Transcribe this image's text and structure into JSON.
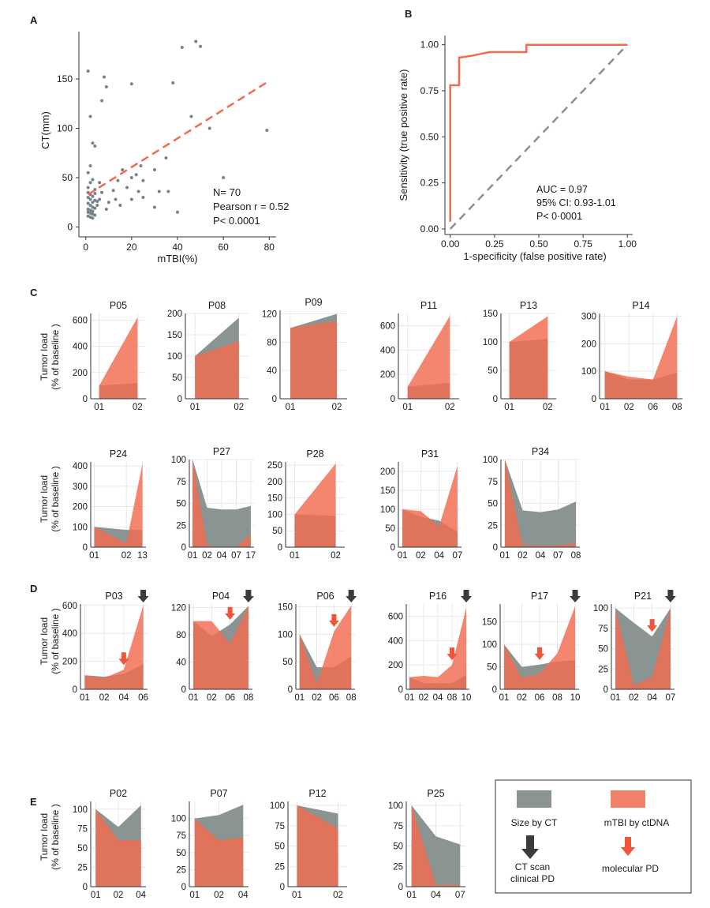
{
  "colors": {
    "ct": "#8a9593",
    "mtbi": "#f26b50",
    "overlap": "#a48c84",
    "grid": "#e3e3e3",
    "axis": "#333333",
    "scatter_point": "#75838a",
    "diagonal": "#8f8f8f",
    "ct_arrow": "#3b3b3b",
    "mol_arrow": "#f0553b"
  },
  "chart_data": [
    {
      "id": "A",
      "panel_letter": "A",
      "type": "scatter",
      "xlabel": "mTBI(%)",
      "ylabel": "CT(mm)",
      "xlim": [
        -3,
        83
      ],
      "ylim": [
        -10,
        198
      ],
      "xticks": [
        "0",
        "20",
        "40",
        "60",
        "80"
      ],
      "xtick_values": [
        0,
        20,
        40,
        60,
        80
      ],
      "yticks": [
        "0",
        "50",
        "100",
        "150"
      ],
      "ytick_values": [
        0,
        50,
        100,
        150
      ],
      "points": [
        [
          1,
          158
        ],
        [
          2,
          112
        ],
        [
          3,
          85
        ],
        [
          4,
          82
        ],
        [
          2,
          62
        ],
        [
          1,
          55
        ],
        [
          3,
          48
        ],
        [
          2,
          45
        ],
        [
          1,
          40
        ],
        [
          4,
          38
        ],
        [
          1,
          35
        ],
        [
          2,
          33
        ],
        [
          3,
          31
        ],
        [
          1,
          30
        ],
        [
          2,
          28
        ],
        [
          4,
          27
        ],
        [
          5,
          26
        ],
        [
          3,
          25
        ],
        [
          1,
          24
        ],
        [
          2,
          22
        ],
        [
          3,
          20
        ],
        [
          4,
          19
        ],
        [
          1,
          18
        ],
        [
          2,
          17
        ],
        [
          3,
          16
        ],
        [
          1,
          15
        ],
        [
          2,
          14
        ],
        [
          3,
          13
        ],
        [
          4,
          12
        ],
        [
          1,
          11
        ],
        [
          2,
          10
        ],
        [
          3,
          9
        ],
        [
          5,
          22
        ],
        [
          6,
          28
        ],
        [
          4,
          34
        ],
        [
          8,
          152
        ],
        [
          9,
          142
        ],
        [
          7,
          128
        ],
        [
          6,
          45
        ],
        [
          7,
          35
        ],
        [
          9,
          18
        ],
        [
          10,
          25
        ],
        [
          12,
          37
        ],
        [
          13,
          28
        ],
        [
          14,
          47
        ],
        [
          16,
          58
        ],
        [
          15,
          22
        ],
        [
          18,
          40
        ],
        [
          20,
          50
        ],
        [
          22,
          53
        ],
        [
          23,
          36
        ],
        [
          20,
          145
        ],
        [
          24,
          62
        ],
        [
          25,
          47
        ],
        [
          30,
          58
        ],
        [
          32,
          36
        ],
        [
          35,
          70
        ],
        [
          36,
          36
        ],
        [
          38,
          146
        ],
        [
          42,
          182
        ],
        [
          46,
          112
        ],
        [
          48,
          188
        ],
        [
          50,
          183
        ],
        [
          54,
          100
        ],
        [
          60,
          50
        ],
        [
          20,
          28
        ],
        [
          25,
          30
        ],
        [
          30,
          20
        ],
        [
          40,
          15
        ],
        [
          79,
          98
        ]
      ],
      "trend": {
        "x": [
          1,
          80
        ],
        "y": [
          33,
          148
        ]
      },
      "annotations": [
        "N= 70",
        "Pearson r = 0.52",
        "P< 0.0001"
      ]
    },
    {
      "id": "B",
      "panel_letter": "B",
      "type": "line",
      "xlabel": "1-specificity (false positive rate)",
      "ylabel": "Sensitivity (true positive rate)",
      "xlim": [
        -0.03,
        1.03
      ],
      "ylim": [
        -0.03,
        1.05
      ],
      "xticks": [
        "0.00",
        "0.25",
        "0.50",
        "0.75",
        "1.00"
      ],
      "xtick_values": [
        0,
        0.25,
        0.5,
        0.75,
        1
      ],
      "yticks": [
        "0.00",
        "0.25",
        "0.50",
        "0.75",
        "1.00"
      ],
      "ytick_values": [
        0,
        0.25,
        0.5,
        0.75,
        1
      ],
      "roc": [
        [
          0,
          0.04
        ],
        [
          0,
          0.78
        ],
        [
          0.05,
          0.78
        ],
        [
          0.05,
          0.91
        ],
        [
          0.05,
          0.93
        ],
        [
          0.12,
          0.94
        ],
        [
          0.17,
          0.95
        ],
        [
          0.22,
          0.96
        ],
        [
          0.43,
          0.96
        ],
        [
          0.43,
          1.0
        ],
        [
          1.0,
          1.0
        ]
      ],
      "diagonal": [
        [
          0,
          0
        ],
        [
          1,
          1
        ]
      ],
      "annotations": [
        "AUC = 0.97",
        "95% CI: 0.93-1.01",
        "P< 0·0001"
      ]
    }
  ],
  "area_panels": [
    {
      "id": "P05",
      "section": "C",
      "ylim": [
        0,
        650
      ],
      "yticks": [
        0,
        200,
        400,
        600
      ],
      "xticks": [
        "01",
        "02"
      ],
      "x": [
        0,
        1
      ],
      "ct": [
        100,
        120
      ],
      "mtbi": [
        100,
        620
      ]
    },
    {
      "id": "P08",
      "section": "C",
      "ylim": [
        0,
        200
      ],
      "yticks": [
        0,
        50,
        100,
        150,
        200
      ],
      "xticks": [
        "01",
        "02"
      ],
      "x": [
        0,
        1
      ],
      "ct": [
        100,
        190
      ],
      "mtbi": [
        100,
        135
      ]
    },
    {
      "id": "P09",
      "section": "C",
      "ylim": [
        0,
        125
      ],
      "yticks": [
        0,
        40,
        80,
        120
      ],
      "xticks": [
        "01",
        "02"
      ],
      "x": [
        0,
        1
      ],
      "ct": [
        100,
        120
      ],
      "mtbi": [
        100,
        110
      ]
    },
    {
      "id": "P11",
      "section": "C",
      "ylim": [
        0,
        700
      ],
      "yticks": [
        0,
        200,
        400,
        600
      ],
      "xticks": [
        "01",
        "02"
      ],
      "x": [
        0,
        1
      ],
      "ct": [
        100,
        130
      ],
      "mtbi": [
        100,
        680
      ]
    },
    {
      "id": "P13",
      "section": "C",
      "ylim": [
        0,
        150
      ],
      "yticks": [
        0,
        50,
        100,
        150
      ],
      "xticks": [
        "01",
        "02"
      ],
      "x": [
        0,
        1
      ],
      "ct": [
        100,
        105
      ],
      "mtbi": [
        100,
        145
      ]
    },
    {
      "id": "P14",
      "section": "C",
      "ylim": [
        0,
        310
      ],
      "yticks": [
        0,
        100,
        200,
        300
      ],
      "xticks": [
        "01",
        "02",
        "06",
        "08"
      ],
      "x": [
        0,
        1,
        2,
        3
      ],
      "ct": [
        100,
        70,
        70,
        95
      ],
      "mtbi": [
        100,
        80,
        70,
        300
      ]
    },
    {
      "id": "P24",
      "section": "C",
      "ylim": [
        0,
        420
      ],
      "yticks": [
        0,
        100,
        200,
        300,
        400
      ],
      "xticks": [
        "01",
        "02",
        "13"
      ],
      "x": [
        0,
        2,
        3
      ],
      "ct": [
        100,
        85,
        85
      ],
      "mtbi": [
        100,
        20,
        410
      ]
    },
    {
      "id": "P27",
      "section": "C",
      "ylim": [
        0,
        100
      ],
      "yticks": [
        0,
        25,
        50,
        75,
        100
      ],
      "xticks": [
        "01",
        "02",
        "04",
        "07",
        "17"
      ],
      "x": [
        0,
        1,
        2,
        3,
        4
      ],
      "ct": [
        100,
        45,
        43,
        43,
        47
      ],
      "mtbi": [
        100,
        2,
        0,
        0,
        15
      ]
    },
    {
      "id": "P28",
      "section": "C",
      "ylim": [
        0,
        260
      ],
      "yticks": [
        0,
        50,
        100,
        150,
        200,
        250
      ],
      "xticks": [
        "01",
        "02"
      ],
      "x": [
        0,
        1
      ],
      "ct": [
        100,
        95
      ],
      "mtbi": [
        100,
        255
      ]
    },
    {
      "id": "P31",
      "section": "C",
      "ylim": [
        0,
        225
      ],
      "yticks": [
        0,
        50,
        100,
        150,
        200
      ],
      "xticks": [
        "01",
        "02",
        "04",
        "07"
      ],
      "x": [
        0,
        1,
        2,
        3
      ],
      "ct": [
        100,
        80,
        70,
        40
      ],
      "mtbi": [
        100,
        95,
        55,
        215
      ]
    },
    {
      "id": "P34",
      "section": "C",
      "ylim": [
        0,
        100
      ],
      "yticks": [
        0,
        25,
        50,
        75,
        100
      ],
      "xticks": [
        "01",
        "02",
        "04",
        "07",
        "08"
      ],
      "x": [
        0,
        1,
        2,
        3,
        4
      ],
      "ct": [
        100,
        42,
        40,
        43,
        52
      ],
      "mtbi": [
        100,
        2,
        2,
        2,
        4
      ]
    },
    {
      "id": "P03",
      "section": "D",
      "ylim": [
        0,
        610
      ],
      "yticks": [
        0,
        200,
        400,
        600
      ],
      "xticks": [
        "01",
        "02",
        "04",
        "06"
      ],
      "x": [
        0,
        1,
        2,
        3
      ],
      "ct": [
        100,
        90,
        110,
        180
      ],
      "mtbi": [
        100,
        80,
        140,
        600
      ],
      "ct_pd": 3,
      "mol_pd": 2
    },
    {
      "id": "P04",
      "section": "D",
      "ylim": [
        0,
        125
      ],
      "yticks": [
        0,
        40,
        80,
        120
      ],
      "xticks": [
        "01",
        "02",
        "06",
        "08"
      ],
      "x": [
        0,
        1,
        2,
        3
      ],
      "ct": [
        100,
        78,
        95,
        122
      ],
      "mtbi": [
        100,
        100,
        67,
        122
      ],
      "ct_pd": 3,
      "mol_pd": 2
    },
    {
      "id": "P06",
      "section": "D",
      "ylim": [
        0,
        155
      ],
      "yticks": [
        0,
        50,
        100,
        150
      ],
      "xticks": [
        "01",
        "02",
        "06",
        "08"
      ],
      "x": [
        0,
        1,
        2,
        3
      ],
      "ct": [
        100,
        40,
        40,
        60
      ],
      "mtbi": [
        100,
        10,
        105,
        152
      ],
      "ct_pd": 3,
      "mol_pd": 2
    },
    {
      "id": "P16",
      "section": "D",
      "ylim": [
        0,
        700
      ],
      "yticks": [
        0,
        200,
        400,
        600
      ],
      "xticks": [
        "01",
        "02",
        "04",
        "08",
        "10"
      ],
      "x": [
        0,
        1,
        2,
        3,
        4
      ],
      "ct": [
        100,
        50,
        50,
        50,
        120
      ],
      "mtbi": [
        100,
        110,
        100,
        200,
        670
      ],
      "ct_pd": 4,
      "mol_pd": 3
    },
    {
      "id": "P17",
      "section": "D",
      "ylim": [
        0,
        190
      ],
      "yticks": [
        0,
        50,
        100,
        150
      ],
      "xticks": [
        "01",
        "02",
        "06",
        "08",
        "10"
      ],
      "x": [
        0,
        1,
        2,
        3,
        4
      ],
      "ct": [
        100,
        50,
        55,
        62,
        65
      ],
      "mtbi": [
        100,
        25,
        35,
        80,
        185
      ],
      "ct_pd": 4,
      "mol_pd": 2
    },
    {
      "id": "P21",
      "section": "D",
      "ylim": [
        0,
        105
      ],
      "yticks": [
        0,
        25,
        50,
        75,
        100
      ],
      "xticks": [
        "01",
        "02",
        "04",
        "07"
      ],
      "x": [
        0,
        1,
        2,
        3
      ],
      "ct": [
        100,
        82,
        65,
        100
      ],
      "mtbi": [
        100,
        5,
        15,
        100
      ],
      "ct_pd": 3,
      "mol_pd": 2
    },
    {
      "id": "P02",
      "section": "E",
      "ylim": [
        0,
        110
      ],
      "yticks": [
        0,
        25,
        50,
        75,
        100
      ],
      "xticks": [
        "01",
        "02",
        "04"
      ],
      "x": [
        0,
        1,
        2
      ],
      "ct": [
        100,
        77,
        105
      ],
      "mtbi": [
        100,
        60,
        60
      ]
    },
    {
      "id": "P07",
      "section": "E",
      "ylim": [
        0,
        125
      ],
      "yticks": [
        0,
        25,
        50,
        75,
        100
      ],
      "xticks": [
        "01",
        "02",
        "04"
      ],
      "x": [
        0,
        1,
        2
      ],
      "ct": [
        100,
        105,
        120
      ],
      "mtbi": [
        100,
        68,
        72
      ]
    },
    {
      "id": "P12",
      "section": "E",
      "ylim": [
        0,
        105
      ],
      "yticks": [
        0,
        25,
        50,
        75,
        100
      ],
      "xticks": [
        "01",
        "02"
      ],
      "x": [
        0,
        1
      ],
      "ct": [
        100,
        90
      ],
      "mtbi": [
        100,
        72
      ]
    },
    {
      "id": "P25",
      "section": "E",
      "ylim": [
        0,
        105
      ],
      "yticks": [
        0,
        25,
        50,
        75,
        100
      ],
      "xticks": [
        "01",
        "04",
        "07"
      ],
      "x": [
        0,
        1,
        2
      ],
      "ct": [
        100,
        62,
        52
      ],
      "mtbi": [
        100,
        2,
        2
      ]
    }
  ],
  "section_labels": [
    "C",
    "D",
    "E"
  ],
  "y_axis_label_line1": "Tumor load",
  "y_axis_label_line2": "(% of baseline )",
  "legend": {
    "ct_label": "Size by CT",
    "mtbi_label": "mTBI by ctDNA",
    "ct_pd_label_line1": "CT scan",
    "ct_pd_label_line2": "clinical PD",
    "mol_pd_label": "molecular PD"
  }
}
